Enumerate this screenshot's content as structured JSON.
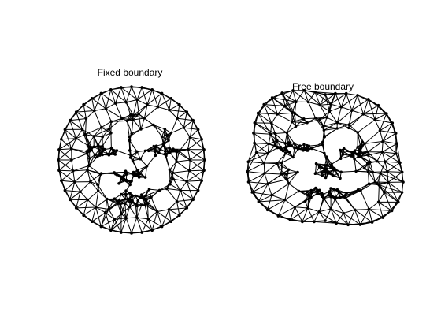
{
  "panels": [
    {
      "title": "Fixed boundary"
    },
    {
      "title": "Free boundary"
    }
  ],
  "style": {
    "stroke": "#000000",
    "background": "#ffffff"
  }
}
